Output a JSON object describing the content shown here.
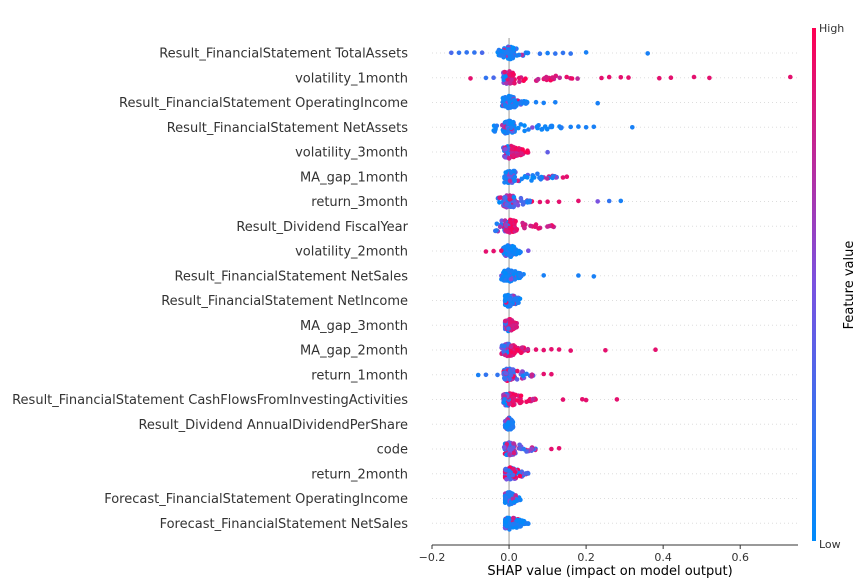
{
  "chart_data": {
    "type": "scatter",
    "subtype": "shap-beeswarm",
    "xlabel": "SHAP value (impact on model output)",
    "xlim": [
      -0.2,
      0.75
    ],
    "xticks": [
      -0.2,
      0.0,
      0.2,
      0.4,
      0.6
    ],
    "xtick_labels": [
      "−0.2",
      "0.0",
      "0.2",
      "0.4",
      "0.6"
    ],
    "zero_line": true,
    "colorbar": {
      "title": "Feature value",
      "high_label": "High",
      "low_label": "Low",
      "low_color": "#008bfb",
      "high_color": "#ff0052"
    },
    "features": [
      {
        "name": "Result_FinancialStatement TotalAssets",
        "min": -0.15,
        "max": 0.36,
        "core": [
          -0.03,
          0.05
        ],
        "hc": "low",
        "outliers": [
          [
            -0.15,
            0.3
          ],
          [
            -0.13,
            0.2
          ],
          [
            -0.11,
            0.2
          ],
          [
            -0.09,
            0.2
          ],
          [
            -0.07,
            0.3
          ],
          [
            0.08,
            0.2
          ],
          [
            0.1,
            0.1
          ],
          [
            0.12,
            0.2
          ],
          [
            0.14,
            0.2
          ],
          [
            0.16,
            0.2
          ],
          [
            0.2,
            0.1
          ],
          [
            0.36,
            0.1
          ]
        ]
      },
      {
        "name": "volatility_1month",
        "min": -0.1,
        "max": 0.73,
        "core": [
          -0.01,
          0.18
        ],
        "hc": "high",
        "outliers": [
          [
            -0.1,
            0.9
          ],
          [
            -0.06,
            0.2
          ],
          [
            -0.04,
            0.3
          ],
          [
            0.24,
            0.9
          ],
          [
            0.26,
            0.9
          ],
          [
            0.29,
            0.9
          ],
          [
            0.31,
            0.9
          ],
          [
            0.39,
            0.9
          ],
          [
            0.42,
            0.9
          ],
          [
            0.48,
            0.9
          ],
          [
            0.52,
            0.9
          ],
          [
            0.73,
            0.9
          ]
        ]
      },
      {
        "name": "Result_FinancialStatement OperatingIncome",
        "min": -0.03,
        "max": 0.23,
        "core": [
          -0.02,
          0.05
        ],
        "hc": "low",
        "outliers": [
          [
            0.07,
            0.1
          ],
          [
            0.09,
            0.1
          ],
          [
            0.12,
            0.1
          ],
          [
            0.23,
            0.1
          ]
        ]
      },
      {
        "name": "Result_FinancialStatement NetAssets",
        "min": -0.05,
        "max": 0.32,
        "core": [
          -0.04,
          0.14
        ],
        "hc": "low",
        "outliers": [
          [
            0.16,
            0.1
          ],
          [
            0.18,
            0.1
          ],
          [
            0.2,
            0.1
          ],
          [
            0.22,
            0.1
          ],
          [
            0.32,
            0.1
          ]
        ]
      },
      {
        "name": "volatility_3month",
        "min": -0.03,
        "max": 0.1,
        "core": [
          -0.01,
          0.05
        ],
        "hc": "high",
        "outliers": [
          [
            0.1,
            0.4
          ]
        ]
      },
      {
        "name": "MA_gap_1month",
        "min": -0.02,
        "max": 0.15,
        "core": [
          -0.01,
          0.13
        ],
        "hc": "low",
        "outliers": [
          [
            0.14,
            0.9
          ],
          [
            0.15,
            0.9
          ]
        ]
      },
      {
        "name": "return_3month",
        "min": -0.03,
        "max": 0.29,
        "core": [
          -0.03,
          0.06
        ],
        "hc": "mixed",
        "outliers": [
          [
            0.08,
            0.9
          ],
          [
            0.1,
            0.9
          ],
          [
            0.13,
            0.9
          ],
          [
            0.18,
            0.9
          ],
          [
            0.23,
            0.5
          ],
          [
            0.26,
            0.2
          ],
          [
            0.29,
            0.1
          ]
        ]
      },
      {
        "name": "Result_Dividend FiscalYear",
        "min": -0.05,
        "max": 0.13,
        "core": [
          -0.04,
          0.12
        ],
        "hc": "high",
        "outliers": []
      },
      {
        "name": "volatility_2month",
        "min": -0.06,
        "max": 0.05,
        "core": [
          -0.01,
          0.03
        ],
        "hc": "low",
        "outliers": [
          [
            -0.06,
            0.9
          ],
          [
            -0.04,
            0.9
          ],
          [
            -0.02,
            0.9
          ],
          [
            0.05,
            0.5
          ]
        ]
      },
      {
        "name": "Result_FinancialStatement NetSales",
        "min": -0.03,
        "max": 0.22,
        "core": [
          -0.02,
          0.04
        ],
        "hc": "low",
        "outliers": [
          [
            0.09,
            0.1
          ],
          [
            0.18,
            0.1
          ],
          [
            0.22,
            0.1
          ]
        ]
      },
      {
        "name": "Result_FinancialStatement NetIncome",
        "min": -0.01,
        "max": 0.03,
        "core": [
          -0.01,
          0.03
        ],
        "hc": "low",
        "outliers": []
      },
      {
        "name": "MA_gap_3month",
        "min": -0.01,
        "max": 0.02,
        "core": [
          -0.01,
          0.02
        ],
        "hc": "high",
        "outliers": []
      },
      {
        "name": "MA_gap_2month",
        "min": -0.02,
        "max": 0.38,
        "core": [
          -0.02,
          0.05
        ],
        "hc": "high",
        "outliers": [
          [
            0.07,
            0.9
          ],
          [
            0.09,
            0.9
          ],
          [
            0.11,
            0.9
          ],
          [
            0.13,
            0.9
          ],
          [
            0.16,
            0.9
          ],
          [
            0.25,
            0.9
          ],
          [
            0.38,
            0.9
          ]
        ]
      },
      {
        "name": "return_1month",
        "min": -0.08,
        "max": 0.11,
        "core": [
          -0.02,
          0.07
        ],
        "hc": "mixed",
        "outliers": [
          [
            -0.08,
            0.1
          ],
          [
            -0.06,
            0.2
          ],
          [
            -0.03,
            0.2
          ],
          [
            0.09,
            0.9
          ],
          [
            0.11,
            0.9
          ]
        ]
      },
      {
        "name": "Result_FinancialStatement CashFlowsFromInvestingActivities",
        "min": -0.02,
        "max": 0.28,
        "core": [
          -0.02,
          0.07
        ],
        "hc": "high",
        "outliers": [
          [
            0.14,
            0.9
          ],
          [
            0.19,
            0.9
          ],
          [
            0.2,
            0.9
          ],
          [
            0.28,
            0.9
          ]
        ]
      },
      {
        "name": "Result_Dividend AnnualDividendPerShare",
        "min": -0.01,
        "max": 0.01,
        "core": [
          -0.01,
          0.01
        ],
        "hc": "low",
        "outliers": []
      },
      {
        "name": "code",
        "min": -0.02,
        "max": 0.13,
        "core": [
          -0.01,
          0.07
        ],
        "hc": "mixed",
        "outliers": [
          [
            0.11,
            0.9
          ],
          [
            0.13,
            0.9
          ]
        ]
      },
      {
        "name": "return_2month",
        "min": -0.01,
        "max": 0.05,
        "core": [
          -0.01,
          0.05
        ],
        "hc": "mixed",
        "outliers": []
      },
      {
        "name": "Forecast_FinancialStatement OperatingIncome",
        "min": -0.01,
        "max": 0.03,
        "core": [
          -0.01,
          0.03
        ],
        "hc": "low",
        "outliers": []
      },
      {
        "name": "Forecast_FinancialStatement NetSales",
        "min": -0.01,
        "max": 0.05,
        "core": [
          -0.01,
          0.05
        ],
        "hc": "low",
        "outliers": [
          [
            0.05,
            0.1
          ]
        ]
      }
    ]
  }
}
